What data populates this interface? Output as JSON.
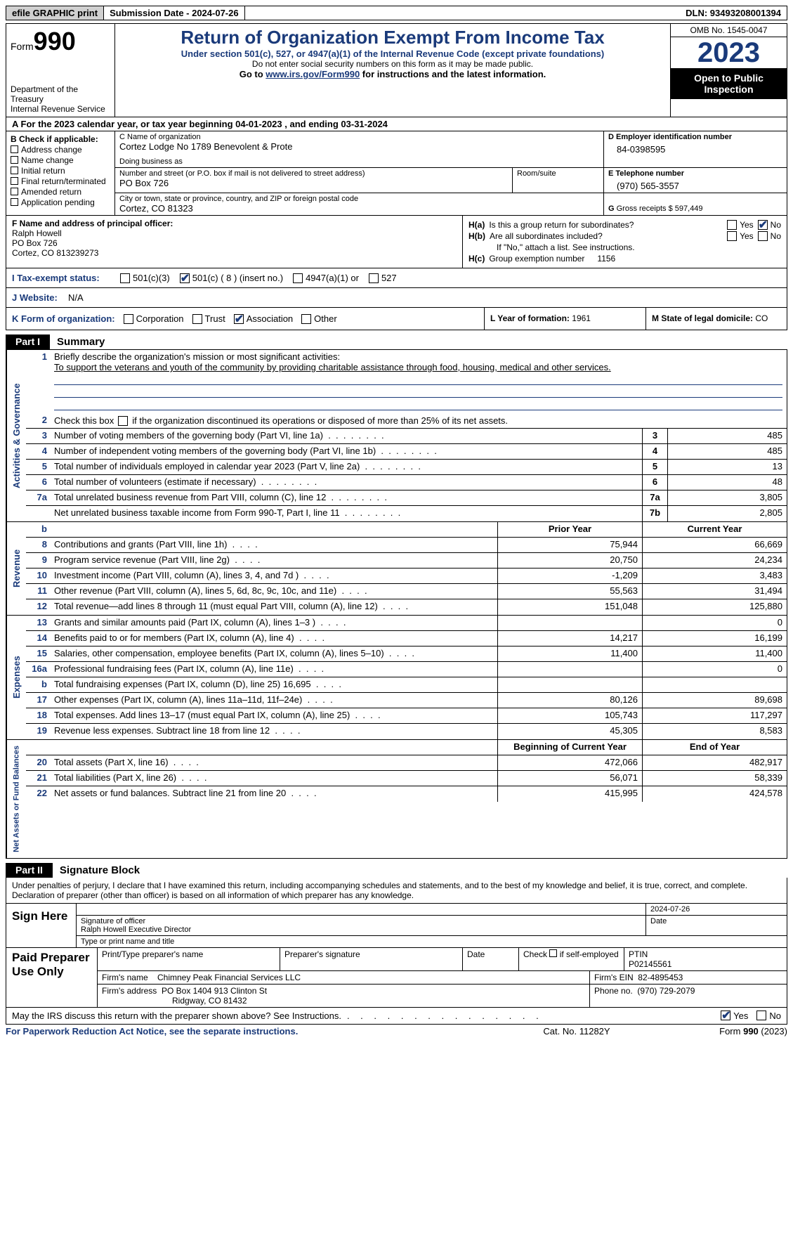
{
  "colors": {
    "accent": "#1a3a7a",
    "shade": "#d0d0d0"
  },
  "topbar": {
    "efile": "efile GRAPHIC print",
    "submission": "Submission Date - 2024-07-26",
    "dln": "DLN: 93493208001394"
  },
  "header": {
    "form_prefix": "Form",
    "form_number": "990",
    "title": "Return of Organization Exempt From Income Tax",
    "subtitle": "Under section 501(c), 527, or 4947(a)(1) of the Internal Revenue Code (except private foundations)",
    "note": "Do not enter social security numbers on this form as it may be made public.",
    "goto_prefix": "Go to ",
    "goto_link": "www.irs.gov/Form990",
    "goto_suffix": " for instructions and the latest information.",
    "dept": "Department of the Treasury\nInternal Revenue Service",
    "omb": "OMB No. 1545-0047",
    "year": "2023",
    "open": "Open to Public Inspection"
  },
  "line_a": "A For the 2023 calendar year, or tax year beginning 04-01-2023    , and ending 03-31-2024",
  "box_b": {
    "header": "B Check if applicable:",
    "items": [
      "Address change",
      "Name change",
      "Initial return",
      "Final return/terminated",
      "Amended return",
      "Application pending"
    ]
  },
  "box_c": {
    "name_lbl": "C Name of organization",
    "name_val": "Cortez Lodge No 1789 Benevolent & Prote",
    "dba_lbl": "Doing business as",
    "dba_val": "",
    "addr_lbl": "Number and street (or P.O. box if mail is not delivered to street address)",
    "addr_val": "PO Box 726",
    "room_lbl": "Room/suite",
    "city_lbl": "City or town, state or province, country, and ZIP or foreign postal code",
    "city_val": "Cortez, CO  81323"
  },
  "box_d": {
    "lbl": "D Employer identification number",
    "val": "84-0398595"
  },
  "box_e": {
    "lbl": "E Telephone number",
    "val": "(970) 565-3557"
  },
  "box_g": {
    "lbl": "G",
    "text": "Gross receipts $",
    "val": "597,449"
  },
  "box_f": {
    "lbl": "F  Name and address of principal officer:",
    "name": "Ralph Howell",
    "addr1": "PO Box 726",
    "addr2": "Cortez, CO  813239273"
  },
  "box_h": {
    "a_lbl": "H(a)",
    "a_text": "Is this a group return for subordinates?",
    "a_yes": "Yes",
    "a_no": "No",
    "a_checked": "no",
    "b_lbl": "H(b)",
    "b_text": "Are all subordinates included?",
    "b_note": "If \"No,\" attach a list. See instructions.",
    "c_lbl": "H(c)",
    "c_text": "Group exemption number",
    "c_val": "1156"
  },
  "row_i": {
    "lbl": "I  Tax-exempt status:",
    "opts": [
      "501(c)(3)",
      "501(c) ( 8 ) (insert no.)",
      "4947(a)(1) or",
      "527"
    ],
    "checked": 1
  },
  "row_j": {
    "lbl": "J  Website:",
    "val": "N/A"
  },
  "row_k": {
    "lbl": "K Form of organization:",
    "opts": [
      "Corporation",
      "Trust",
      "Association",
      "Other"
    ],
    "checked": 2,
    "l_lbl": "L Year of formation:",
    "l_val": "1961",
    "m_lbl": "M State of legal domicile:",
    "m_val": "CO"
  },
  "part1": {
    "tab": "Part I",
    "title": "Summary"
  },
  "governance": {
    "side": "Activities & Governance",
    "l1_num": "1",
    "l1_text": "Briefly describe the organization's mission or most significant activities:",
    "l1_mission": "To support the veterans and youth of the community by providing charitable assistance through food, housing, medical and other services.",
    "l2_num": "2",
    "l2_text": "Check this box      if the organization discontinued its operations or disposed of more than 25% of its net assets.",
    "lines": [
      {
        "n": "3",
        "t": "Number of voting members of the governing body (Part VI, line 1a)",
        "c": "3",
        "v": "485"
      },
      {
        "n": "4",
        "t": "Number of independent voting members of the governing body (Part VI, line 1b)",
        "c": "4",
        "v": "485"
      },
      {
        "n": "5",
        "t": "Total number of individuals employed in calendar year 2023 (Part V, line 2a)",
        "c": "5",
        "v": "13"
      },
      {
        "n": "6",
        "t": "Total number of volunteers (estimate if necessary)",
        "c": "6",
        "v": "48"
      },
      {
        "n": "7a",
        "t": "Total unrelated business revenue from Part VIII, column (C), line 12",
        "c": "7a",
        "v": "3,805"
      },
      {
        "n": "",
        "t": "Net unrelated business taxable income from Form 990-T, Part I, line 11",
        "c": "7b",
        "v": "2,805"
      }
    ]
  },
  "revenue": {
    "side": "Revenue",
    "hdr_prior": "Prior Year",
    "hdr_curr": "Current Year",
    "lines": [
      {
        "n": "8",
        "t": "Contributions and grants (Part VIII, line 1h)",
        "p": "75,944",
        "c": "66,669"
      },
      {
        "n": "9",
        "t": "Program service revenue (Part VIII, line 2g)",
        "p": "20,750",
        "c": "24,234"
      },
      {
        "n": "10",
        "t": "Investment income (Part VIII, column (A), lines 3, 4, and 7d )",
        "p": "-1,209",
        "c": "3,483"
      },
      {
        "n": "11",
        "t": "Other revenue (Part VIII, column (A), lines 5, 6d, 8c, 9c, 10c, and 11e)",
        "p": "55,563",
        "c": "31,494"
      },
      {
        "n": "12",
        "t": "Total revenue—add lines 8 through 11 (must equal Part VIII, column (A), line 12)",
        "p": "151,048",
        "c": "125,880"
      }
    ]
  },
  "expenses": {
    "side": "Expenses",
    "lines": [
      {
        "n": "13",
        "t": "Grants and similar amounts paid (Part IX, column (A), lines 1–3 )",
        "p": "",
        "c": "0"
      },
      {
        "n": "14",
        "t": "Benefits paid to or for members (Part IX, column (A), line 4)",
        "p": "14,217",
        "c": "16,199"
      },
      {
        "n": "15",
        "t": "Salaries, other compensation, employee benefits (Part IX, column (A), lines 5–10)",
        "p": "11,400",
        "c": "11,400"
      },
      {
        "n": "16a",
        "t": "Professional fundraising fees (Part IX, column (A), line 11e)",
        "p": "",
        "c": "0"
      },
      {
        "n": "b",
        "t": "Total fundraising expenses (Part IX, column (D), line 25) 16,695",
        "p": "shade",
        "c": "shade"
      },
      {
        "n": "17",
        "t": "Other expenses (Part IX, column (A), lines 11a–11d, 11f–24e)",
        "p": "80,126",
        "c": "89,698"
      },
      {
        "n": "18",
        "t": "Total expenses. Add lines 13–17 (must equal Part IX, column (A), line 25)",
        "p": "105,743",
        "c": "117,297"
      },
      {
        "n": "19",
        "t": "Revenue less expenses. Subtract line 18 from line 12",
        "p": "45,305",
        "c": "8,583"
      }
    ]
  },
  "netassets": {
    "side": "Net Assets or Fund Balances",
    "hdr_begin": "Beginning of Current Year",
    "hdr_end": "End of Year",
    "lines": [
      {
        "n": "20",
        "t": "Total assets (Part X, line 16)",
        "p": "472,066",
        "c": "482,917"
      },
      {
        "n": "21",
        "t": "Total liabilities (Part X, line 26)",
        "p": "56,071",
        "c": "58,339"
      },
      {
        "n": "22",
        "t": "Net assets or fund balances. Subtract line 21 from line 20",
        "p": "415,995",
        "c": "424,578"
      }
    ]
  },
  "part2": {
    "tab": "Part II",
    "title": "Signature Block"
  },
  "sig": {
    "decl": "Under penalties of perjury, I declare that I have examined this return, including accompanying schedules and statements, and to the best of my knowledge and belief, it is true, correct, and complete. Declaration of preparer (other than officer) is based on all information of which preparer has any knowledge.",
    "sign_here": "Sign Here",
    "sig_lbl": "Signature of officer",
    "date_lbl": "Date",
    "date_val": "2024-07-26",
    "officer": "Ralph Howell  Executive Director",
    "type_lbl": "Type or print name and title"
  },
  "paid": {
    "label": "Paid Preparer Use Only",
    "h1": "Print/Type preparer's name",
    "h2": "Preparer's signature",
    "h3": "Date",
    "h4_lbl": "Check        if self-employed",
    "h5_lbl": "PTIN",
    "h5_val": "P02145561",
    "firm_lbl": "Firm's name",
    "firm_val": "Chimney Peak Financial Services LLC",
    "ein_lbl": "Firm's EIN",
    "ein_val": "82-4895453",
    "addr_lbl": "Firm's address",
    "addr_val1": "PO Box 1404 913 Clinton St",
    "addr_val2": "Ridgway, CO  81432",
    "phone_lbl": "Phone no.",
    "phone_val": "(970) 729-2079"
  },
  "discuss": {
    "text": "May the IRS discuss this return with the preparer shown above? See Instructions.",
    "yes": "Yes",
    "no": "No",
    "checked": "yes"
  },
  "footer": {
    "left": "For Paperwork Reduction Act Notice, see the separate instructions.",
    "mid": "Cat. No. 11282Y",
    "right_pre": "Form ",
    "right_num": "990",
    "right_suf": " (2023)"
  }
}
